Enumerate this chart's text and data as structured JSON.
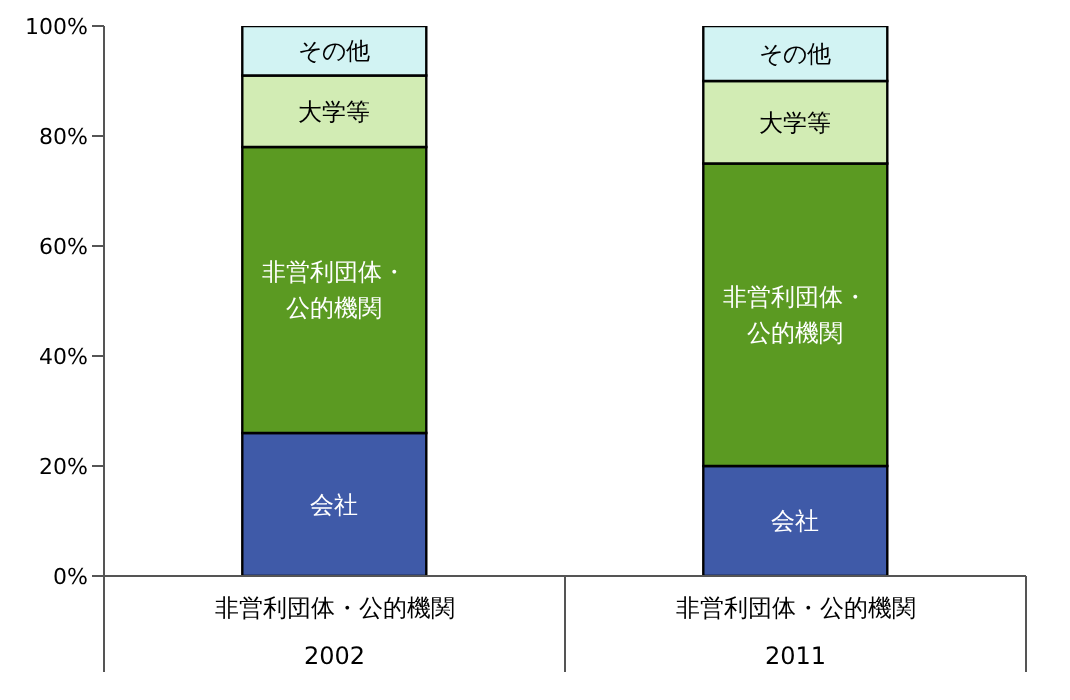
{
  "chart_data": {
    "type": "bar",
    "stacked": true,
    "categories": [
      "非営利団体・公的機関\n2002",
      "非営利団体・公的機関\n2011"
    ],
    "series": [
      {
        "name": "会社",
        "color": "#3f5aa8",
        "values": [
          26,
          20
        ]
      },
      {
        "name": "非営利団体・公的機関",
        "color": "#5b9a22",
        "values": [
          52,
          55
        ]
      },
      {
        "name": "大学等",
        "color": "#d2ecb4",
        "values": [
          13,
          15
        ]
      },
      {
        "name": "その他",
        "color": "#d2f3f3",
        "values": [
          9,
          10
        ]
      }
    ],
    "ylim": [
      0,
      100
    ],
    "yticks": [
      {
        "value": 0,
        "label": "0%"
      },
      {
        "value": 20,
        "label": "20%"
      },
      {
        "value": 40,
        "label": "40%"
      },
      {
        "value": 60,
        "label": "60%"
      },
      {
        "value": 80,
        "label": "80%"
      },
      {
        "value": 100,
        "label": "100%"
      }
    ],
    "grid": false,
    "legend": false
  }
}
